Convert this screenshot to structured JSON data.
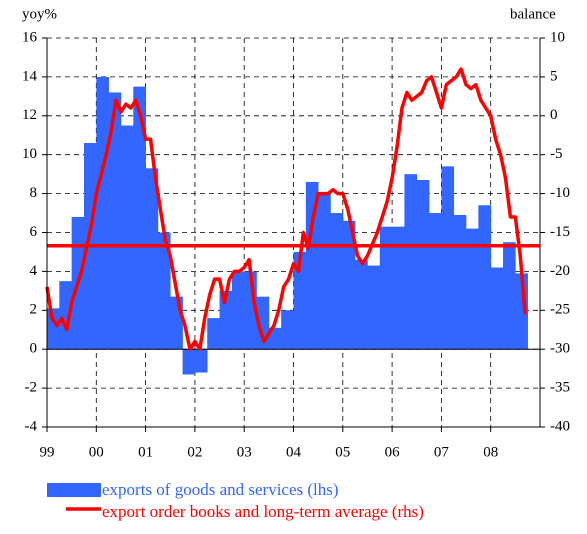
{
  "chart_data": {
    "type": "combo",
    "y_label": "yoy%",
    "y2_label": "balance",
    "ylim": [
      -4,
      16
    ],
    "yticks": [
      -4,
      -2,
      0,
      2,
      4,
      6,
      8,
      10,
      12,
      14,
      16
    ],
    "y2lim": [
      -40,
      10
    ],
    "y2ticks": [
      -40,
      -35,
      -30,
      -25,
      -20,
      -15,
      -10,
      -5,
      0,
      5,
      10
    ],
    "xlim": [
      1999,
      2009
    ],
    "xticks": [
      {
        "value": 1999,
        "label": "99"
      },
      {
        "value": 2000,
        "label": "00"
      },
      {
        "value": 2001,
        "label": "01"
      },
      {
        "value": 2002,
        "label": "02"
      },
      {
        "value": 2003,
        "label": "03"
      },
      {
        "value": 2004,
        "label": "04"
      },
      {
        "value": 2005,
        "label": "05"
      },
      {
        "value": 2006,
        "label": "06"
      },
      {
        "value": 2007,
        "label": "07"
      },
      {
        "value": 2008,
        "label": "08"
      }
    ],
    "grid": true,
    "series": [
      {
        "name": "exports of goods and services (lhs)",
        "type": "bar",
        "axis": "y",
        "color": "#3366ff",
        "x": [
          1999,
          1999.25,
          1999.5,
          1999.75,
          2000,
          2000.25,
          2000.5,
          2000.75,
          2001,
          2001.25,
          2001.5,
          2001.75,
          2002,
          2002.25,
          2002.5,
          2002.75,
          2003,
          2003.25,
          2003.5,
          2003.75,
          2004,
          2004.25,
          2004.5,
          2004.75,
          2005,
          2005.25,
          2005.5,
          2005.75,
          2006,
          2006.25,
          2006.5,
          2006.75,
          2007,
          2007.25,
          2007.5,
          2007.75,
          2008,
          2008.25,
          2008.5
        ],
        "values": [
          2.1,
          3.5,
          6.8,
          10.6,
          14.0,
          13.2,
          11.5,
          13.5,
          9.3,
          6.0,
          2.7,
          -1.3,
          -1.2,
          1.6,
          3.0,
          4.0,
          4.0,
          2.7,
          1.1,
          2.0,
          5.0,
          8.6,
          8.0,
          7.0,
          6.6,
          4.6,
          4.3,
          6.3,
          6.3,
          9.0,
          8.7,
          7.0,
          9.4,
          6.9,
          6.2,
          7.4,
          4.2,
          5.5,
          3.9
        ]
      },
      {
        "name": "export order books and long-term average (rhs)",
        "type": "line",
        "axis": "y2",
        "color": "#ff0000",
        "x": [
          1999.0,
          1999.1,
          1999.2,
          1999.3,
          1999.4,
          1999.5,
          1999.7,
          1999.9,
          2000.0,
          2000.2,
          2000.3,
          2000.4,
          2000.5,
          2000.6,
          2000.7,
          2000.8,
          2000.9,
          2001.0,
          2001.1,
          2001.2,
          2001.3,
          2001.4,
          2001.5,
          2001.7,
          2001.8,
          2001.9,
          2002.0,
          2002.1,
          2002.2,
          2002.3,
          2002.4,
          2002.5,
          2002.6,
          2002.7,
          2002.8,
          2002.9,
          2003.0,
          2003.1,
          2003.2,
          2003.3,
          2003.4,
          2003.5,
          2003.6,
          2003.7,
          2003.8,
          2003.9,
          2004.0,
          2004.1,
          2004.2,
          2004.3,
          2004.4,
          2004.5,
          2004.6,
          2004.7,
          2004.8,
          2004.9,
          2005.0,
          2005.1,
          2005.2,
          2005.3,
          2005.4,
          2005.5,
          2005.6,
          2005.7,
          2005.8,
          2005.9,
          2006.0,
          2006.1,
          2006.2,
          2006.3,
          2006.4,
          2006.5,
          2006.6,
          2006.7,
          2006.8,
          2006.9,
          2007.0,
          2007.1,
          2007.2,
          2007.3,
          2007.4,
          2007.5,
          2007.6,
          2007.7,
          2007.8,
          2007.9,
          2008.0,
          2008.1,
          2008.2,
          2008.3,
          2008.4,
          2008.5,
          2008.6,
          2008.7
        ],
        "values": [
          -22,
          -26,
          -27,
          -26,
          -27.5,
          -24,
          -20,
          -14,
          -10,
          -5,
          -2,
          2,
          0.5,
          1.5,
          1,
          2,
          0,
          -3,
          -3,
          -8,
          -12,
          -16,
          -18,
          -25,
          -27,
          -30,
          -29,
          -30,
          -26,
          -23,
          -21,
          -21,
          -24,
          -21,
          -20,
          -20,
          -19.5,
          -18.5,
          -24,
          -27,
          -29,
          -28,
          -27,
          -25,
          -22,
          -21,
          -19,
          -20,
          -15,
          -17,
          -13,
          -10,
          -10,
          -10,
          -9.5,
          -10,
          -10,
          -12,
          -15,
          -18,
          -19,
          -18,
          -16.5,
          -15,
          -13,
          -11,
          -8,
          -4,
          1,
          3,
          2,
          2.5,
          3,
          4.5,
          5,
          3,
          1,
          4,
          4.5,
          5,
          6,
          4,
          3.5,
          4,
          2,
          1,
          0,
          -3,
          -5,
          -8,
          -13,
          -13,
          -18,
          -25.5
        ],
        "long_term_average": -16.7
      }
    ]
  }
}
